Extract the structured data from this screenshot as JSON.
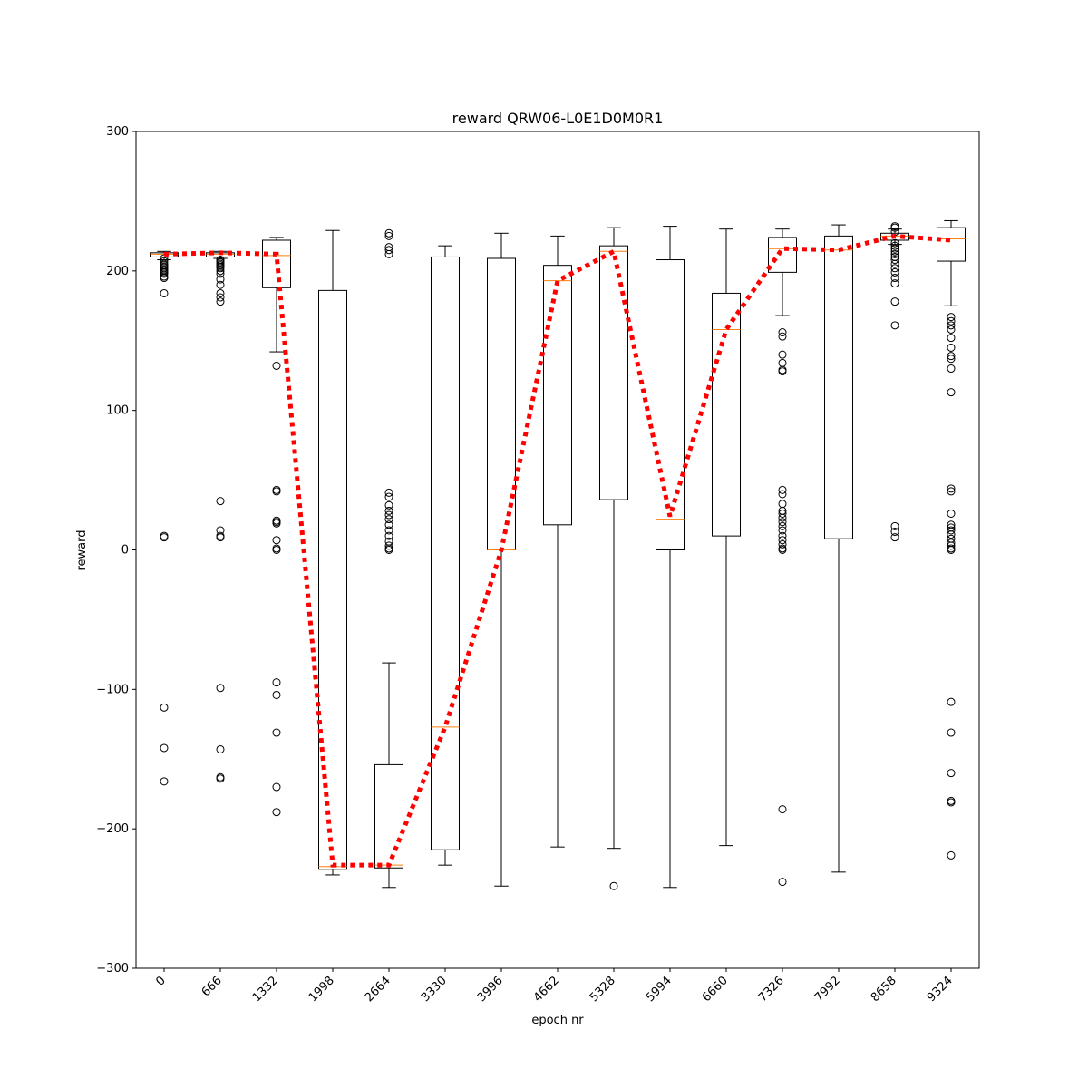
{
  "chart_data": {
    "type": "boxplot",
    "title": "reward QRW06-L0E1D0M0R1",
    "xlabel": "epoch nr",
    "ylabel": "reward",
    "ylim": [
      -300,
      300
    ],
    "yticks": [
      -300,
      -200,
      -100,
      0,
      100,
      200,
      300
    ],
    "grid": false,
    "categories": [
      "0",
      "666",
      "1332",
      "1998",
      "2664",
      "3330",
      "3996",
      "4662",
      "5328",
      "5994",
      "6660",
      "7326",
      "7992",
      "8658",
      "9324"
    ],
    "boxes": [
      {
        "whisker_low": 208,
        "q1": 210,
        "median": 212,
        "q3": 213,
        "whisker_high": 214,
        "outliers": [
          209,
          207,
          205,
          204,
          203,
          202,
          201,
          200,
          199,
          198,
          196,
          195,
          184,
          10,
          9,
          -113,
          -142,
          -166
        ]
      },
      {
        "whisker_low": 209,
        "q1": 210,
        "median": 212,
        "q3": 213,
        "whisker_high": 214,
        "outliers": [
          208,
          207,
          206,
          205,
          204,
          203,
          202,
          200,
          198,
          194,
          190,
          184,
          181,
          178,
          35,
          14,
          10,
          9,
          -99,
          -143,
          -163,
          -164
        ]
      },
      {
        "whisker_low": 142,
        "q1": 188,
        "median": 211,
        "q3": 222,
        "whisker_high": 224,
        "outliers": [
          132,
          43,
          42,
          21,
          20,
          19,
          7,
          1,
          0,
          -95,
          -104,
          -131,
          -170,
          -188
        ]
      },
      {
        "whisker_low": -233,
        "q1": -229,
        "median": -227,
        "q3": 186,
        "whisker_high": 229,
        "outliers": []
      },
      {
        "whisker_low": -242,
        "q1": -228,
        "median": -226,
        "q3": -154,
        "whisker_high": -81,
        "outliers": [
          227,
          225,
          217,
          215,
          212,
          41,
          38,
          32,
          28,
          25,
          22,
          18,
          14,
          10,
          6,
          3,
          1,
          0
        ]
      },
      {
        "whisker_low": -226,
        "q1": -215,
        "median": -127,
        "q3": 210,
        "whisker_high": 218,
        "outliers": []
      },
      {
        "whisker_low": -241,
        "q1": 0,
        "median": 0,
        "q3": 209,
        "whisker_high": 227,
        "outliers": []
      },
      {
        "whisker_low": -213,
        "q1": 18,
        "median": 193,
        "q3": 204,
        "whisker_high": 225,
        "outliers": []
      },
      {
        "whisker_low": -214,
        "q1": 36,
        "median": 214,
        "q3": 218,
        "whisker_high": 231,
        "outliers": [
          -241
        ]
      },
      {
        "whisker_low": -242,
        "q1": 0,
        "median": 22,
        "q3": 208,
        "whisker_high": 232,
        "outliers": []
      },
      {
        "whisker_low": -212,
        "q1": 10,
        "median": 158,
        "q3": 184,
        "whisker_high": 230,
        "outliers": []
      },
      {
        "whisker_low": 168,
        "q1": 199,
        "median": 216,
        "q3": 224,
        "whisker_high": 230,
        "outliers": [
          156,
          153,
          140,
          134,
          129,
          128,
          43,
          40,
          33,
          28,
          26,
          23,
          20,
          17,
          14,
          10,
          7,
          4,
          1,
          0,
          -186,
          -238
        ]
      },
      {
        "whisker_low": -231,
        "q1": 8,
        "median": 215,
        "q3": 225,
        "whisker_high": 233,
        "outliers": []
      },
      {
        "whisker_low": 219,
        "q1": 222,
        "median": 225,
        "q3": 227,
        "whisker_high": 230,
        "outliers": [
          232,
          231,
          228,
          220,
          218,
          216,
          214,
          212,
          210,
          208,
          205,
          202,
          199,
          195,
          191,
          178,
          161,
          17,
          13,
          9
        ]
      },
      {
        "whisker_low": 175,
        "q1": 207,
        "median": 223,
        "q3": 231,
        "whisker_high": 236,
        "outliers": [
          167,
          164,
          161,
          158,
          152,
          145,
          139,
          137,
          130,
          113,
          44,
          42,
          26,
          18,
          16,
          14,
          11,
          8,
          5,
          3,
          1,
          0,
          -109,
          -131,
          -160,
          -180,
          -181,
          -219
        ]
      }
    ],
    "mean_line": {
      "color": "#ff0000",
      "style": "dotted",
      "values": [
        212,
        213,
        212,
        -226,
        -226,
        -127,
        0,
        193,
        214,
        24,
        158,
        216,
        215,
        225,
        222
      ]
    },
    "colors": {
      "box": "#000000",
      "median": "#ff7f0e",
      "mean_line": "#ff0000"
    }
  }
}
